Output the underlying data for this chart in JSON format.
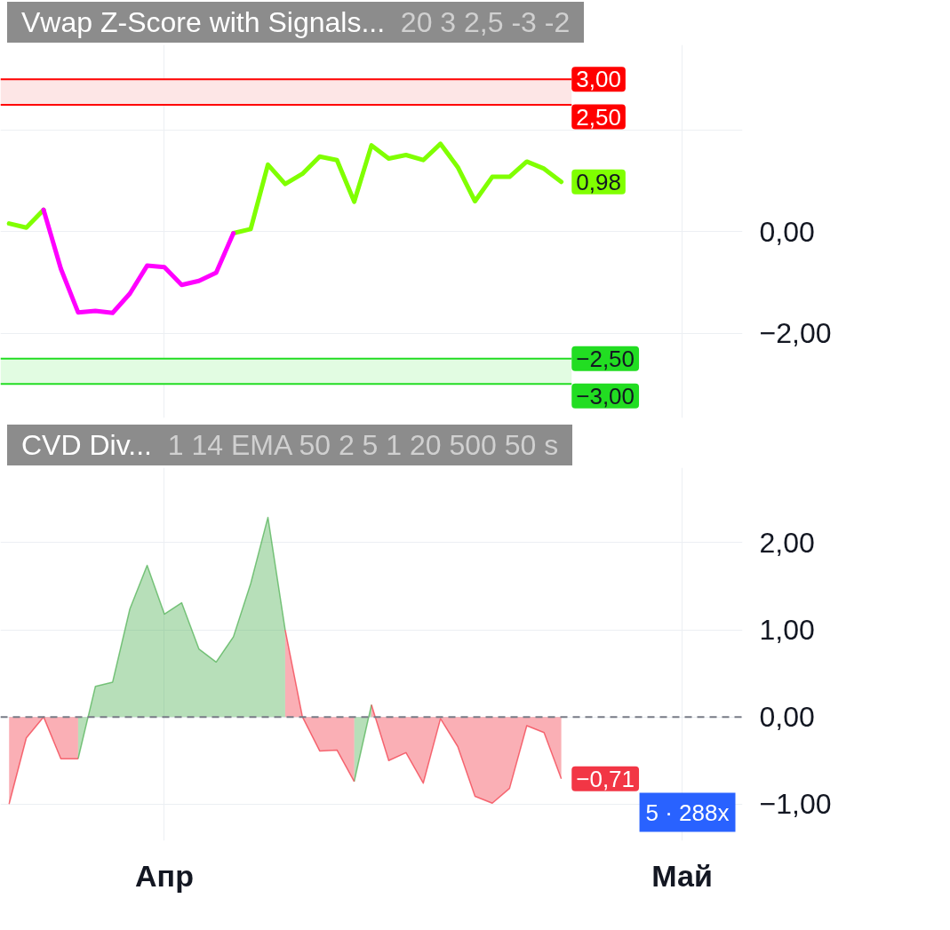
{
  "chart_data": [
    {
      "type": "line",
      "title": "Vwap Z-Score with Signals...",
      "subtitle": "20 3 2,5 -3 -2",
      "categories": [
        null,
        null,
        null,
        null,
        null,
        null,
        null,
        null,
        null,
        null,
        null,
        null,
        null,
        null,
        null,
        null,
        null,
        null,
        null,
        null,
        null,
        null,
        null,
        null,
        null,
        null,
        null,
        null,
        null,
        null,
        null,
        null,
        null,
        null,
        null,
        null,
        null,
        null,
        null,
        null,
        null,
        null,
        null
      ],
      "ylim": [
        -3.67,
        3.68
      ],
      "yticks": [
        {
          "value": 2,
          "label": null
        },
        {
          "value": 0,
          "label": "0,00"
        },
        {
          "value": -2,
          "label": "−2,00"
        }
      ],
      "tick_labels": "y",
      "grid": true,
      "series": [
        {
          "color": "#80ff00",
          "values": [
            0.16,
            0.08,
            0.43,
            null,
            null,
            null,
            null,
            null,
            null,
            null,
            null,
            null,
            null,
            -0.03,
            0.05,
            1.32,
            0.94,
            1.14,
            1.48,
            1.41,
            0.59,
            1.7,
            1.44,
            1.51,
            1.41,
            1.73,
            1.27,
            0.6,
            1.08,
            1.08,
            1.38,
            1.24,
            0.98,
            null,
            null,
            null,
            null,
            null,
            null,
            null,
            null,
            null,
            null
          ],
          "value_labels": [
            null,
            null,
            null,
            null,
            null,
            null,
            null,
            null,
            null,
            null,
            null,
            null,
            null,
            null,
            null,
            null,
            null,
            null,
            null,
            null,
            null,
            null,
            null,
            null,
            null,
            null,
            null,
            null,
            null,
            null,
            null,
            null,
            "0,98",
            null,
            null,
            null,
            null,
            null,
            null,
            null,
            null,
            null,
            null
          ]
        },
        {
          "color": "#ff00ff",
          "values": [
            null,
            null,
            0.43,
            -0.73,
            -1.59,
            -1.56,
            -1.6,
            -1.22,
            -0.67,
            -0.7,
            -1.05,
            -0.97,
            -0.81,
            -0.03,
            null,
            null,
            null,
            null,
            null,
            null,
            null,
            null,
            null,
            null,
            null,
            null,
            null,
            null,
            null,
            null,
            null,
            null,
            null,
            null,
            null,
            null,
            null,
            null,
            null,
            null,
            null,
            null,
            null
          ]
        }
      ],
      "ref_lines": [
        {
          "axis": "y",
          "value": 3,
          "label": "3,00",
          "color": "#ff0000"
        },
        {
          "axis": "y",
          "value": 2.5,
          "label": "2,50",
          "color": "#ff0000"
        },
        {
          "axis": "y",
          "value": -2.5,
          "label": "−2,50",
          "color": "#22dd22"
        },
        {
          "axis": "y",
          "value": -3,
          "label": "−3,00",
          "color": "#22dd22"
        }
      ],
      "bands": [
        {
          "axis": "y",
          "from": 2.5,
          "to": 3,
          "color": "#fde6e6"
        },
        {
          "axis": "y",
          "from": -3,
          "to": -2.5,
          "color": "#e2fce2"
        }
      ]
    },
    {
      "type": "area",
      "title": "CVD Div...",
      "subtitle": "1 14 EMA 50 2 5 1 20 500 50 s",
      "categories": [
        null,
        null,
        null,
        null,
        null,
        null,
        null,
        null,
        null,
        "Апр",
        null,
        null,
        null,
        null,
        null,
        null,
        null,
        null,
        null,
        null,
        null,
        null,
        null,
        null,
        null,
        null,
        null,
        null,
        null,
        null,
        null,
        null,
        null,
        null,
        null,
        null,
        null,
        null,
        null,
        "Май",
        null,
        null,
        null
      ],
      "ylim": [
        -1.42,
        2.86
      ],
      "yticks": [
        {
          "value": 2,
          "label": "2,00"
        },
        {
          "value": 1,
          "label": "1,00"
        },
        {
          "value": 0,
          "label": "0,00"
        },
        {
          "value": -1,
          "label": "−1,00"
        }
      ],
      "grid": true,
      "series": [
        {
          "color": "#4caf50",
          "values": [
            null,
            null,
            null,
            null,
            -0.48,
            0.35,
            0.4,
            1.24,
            1.74,
            1.18,
            1.31,
            0.78,
            0.63,
            0.92,
            1.53,
            2.29,
            1.0,
            null,
            null,
            null,
            -0.74,
            0.14,
            null,
            null,
            null,
            null,
            null,
            null,
            null,
            null,
            null,
            null,
            null,
            null,
            null,
            null,
            null,
            null,
            null,
            null,
            null,
            null,
            null
          ]
        },
        {
          "color": "#f23645",
          "values": [
            -1.0,
            -0.24,
            0.0,
            -0.48,
            -0.48,
            null,
            null,
            null,
            null,
            null,
            null,
            null,
            null,
            null,
            null,
            null,
            1.0,
            0.0,
            -0.39,
            -0.38,
            -0.74,
            null,
            null,
            null,
            null,
            null,
            null,
            null,
            null,
            null,
            null,
            null,
            null,
            null,
            null,
            null,
            null,
            null,
            null,
            null,
            null,
            null,
            null
          ]
        },
        {
          "color": "#f23645",
          "values": [
            null,
            null,
            null,
            null,
            null,
            null,
            null,
            null,
            null,
            null,
            null,
            null,
            null,
            null,
            null,
            null,
            null,
            null,
            null,
            null,
            null,
            0.14,
            -0.5,
            -0.41,
            -0.76,
            -0.02,
            -0.34,
            -0.91,
            -0.99,
            -0.82,
            -0.1,
            -0.18,
            -0.71,
            null,
            null,
            null,
            null,
            null,
            null,
            null,
            null,
            null,
            null
          ],
          "value_labels": [
            null,
            null,
            null,
            null,
            null,
            null,
            null,
            null,
            null,
            null,
            null,
            null,
            null,
            null,
            null,
            null,
            null,
            null,
            null,
            null,
            null,
            null,
            null,
            null,
            null,
            null,
            null,
            null,
            null,
            null,
            null,
            null,
            "−0,71",
            null,
            null,
            null,
            null,
            null,
            null,
            null,
            null,
            null,
            null
          ]
        }
      ],
      "ref_lines": [
        {
          "axis": "y",
          "value": 0,
          "color": "#787b86",
          "line_style": "dashed"
        }
      ],
      "annotations": [
        "5 · 288x"
      ]
    }
  ]
}
